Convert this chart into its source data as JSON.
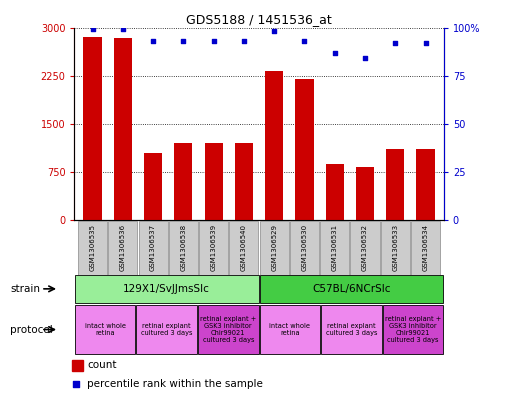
{
  "title": "GDS5188 / 1451536_at",
  "samples": [
    "GSM1306535",
    "GSM1306536",
    "GSM1306537",
    "GSM1306538",
    "GSM1306539",
    "GSM1306540",
    "GSM1306529",
    "GSM1306530",
    "GSM1306531",
    "GSM1306532",
    "GSM1306533",
    "GSM1306534"
  ],
  "counts": [
    2850,
    2830,
    1050,
    1200,
    1200,
    1200,
    2320,
    2200,
    870,
    830,
    1100,
    1100
  ],
  "percentiles": [
    99,
    99,
    93,
    93,
    93,
    93,
    98,
    93,
    87,
    84,
    92,
    92
  ],
  "ylim_left": [
    0,
    3000
  ],
  "ylim_right": [
    0,
    100
  ],
  "yticks_left": [
    0,
    750,
    1500,
    2250,
    3000
  ],
  "yticks_right": [
    0,
    25,
    50,
    75,
    100
  ],
  "bar_color": "#cc0000",
  "dot_color": "#0000cc",
  "strain_groups": [
    {
      "label": "129X1/SvJJmsSlc",
      "start": 0,
      "end": 6,
      "color": "#99ee99"
    },
    {
      "label": "C57BL/6NCrSlc",
      "start": 6,
      "end": 12,
      "color": "#44cc44"
    }
  ],
  "protocol_groups": [
    {
      "label": "intact whole\nretina",
      "start": 0,
      "end": 2,
      "color": "#ee88ee"
    },
    {
      "label": "retinal explant\ncultured 3 days",
      "start": 2,
      "end": 4,
      "color": "#ee88ee"
    },
    {
      "label": "retinal explant +\nGSK3 inhibitor\nChir99021\ncultured 3 days",
      "start": 4,
      "end": 6,
      "color": "#cc44cc"
    },
    {
      "label": "intact whole\nretina",
      "start": 6,
      "end": 8,
      "color": "#ee88ee"
    },
    {
      "label": "retinal explant\ncultured 3 days",
      "start": 8,
      "end": 10,
      "color": "#ee88ee"
    },
    {
      "label": "retinal explant +\nGSK3 inhibitor\nChir99021\ncultured 3 days",
      "start": 10,
      "end": 12,
      "color": "#cc44cc"
    }
  ],
  "legend_count_color": "#cc0000",
  "legend_pct_color": "#0000cc",
  "tick_label_bg": "#cccccc",
  "fig_width": 5.13,
  "fig_height": 3.93,
  "dpi": 100
}
